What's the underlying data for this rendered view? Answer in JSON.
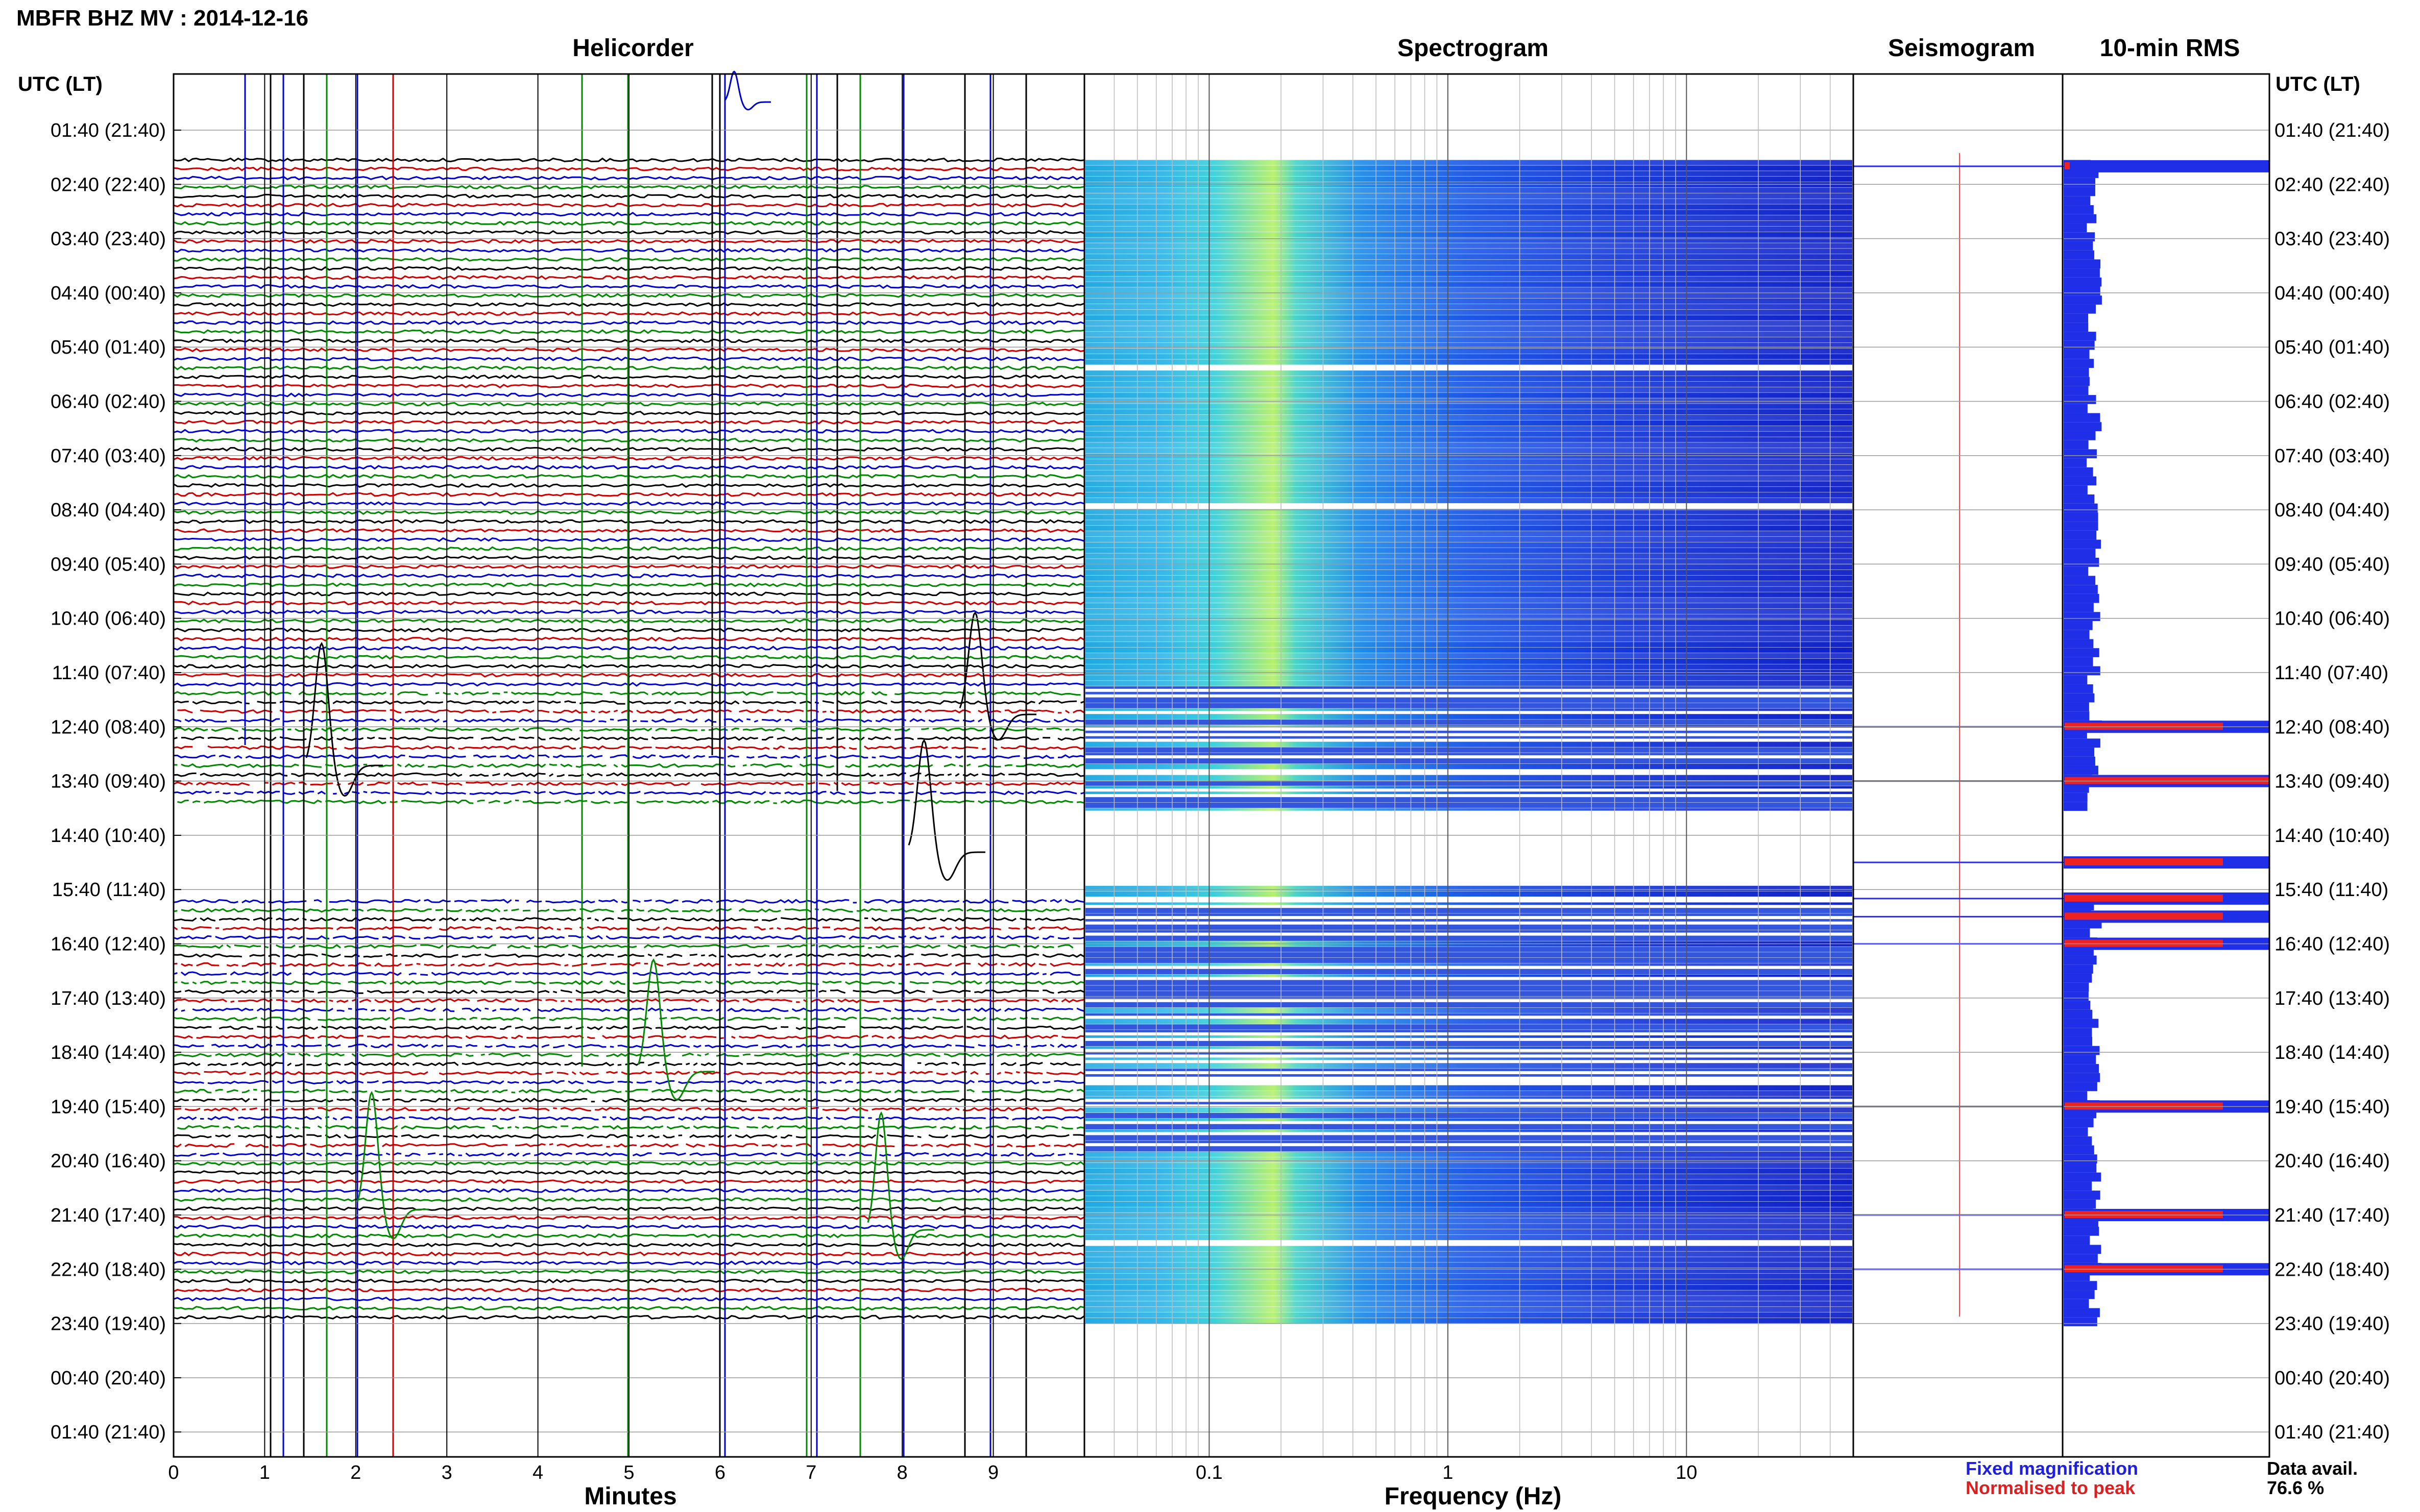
{
  "figure": {
    "title": "MBFR BHZ MV : 2014-12-16",
    "time_header_left": "UTC (LT)",
    "time_header_right": "UTC (LT)"
  },
  "panels": {
    "helicorder": "Helicorder",
    "spectrogram": "Spectrogram",
    "seismogram": "Seismogram",
    "rms": "10-min RMS"
  },
  "axes": {
    "helicorder_xlabel": "Minutes",
    "spectrogram_xlabel": "Frequency (Hz)"
  },
  "legend": {
    "fixed": "Fixed magnification",
    "normalised": "Normalised to peak",
    "fixed_color": "#1f1fdd",
    "normalised_color": "#dd1f1f"
  },
  "availability": {
    "label": "Data avail.",
    "value": "76.6 %"
  },
  "chart_data": [
    {
      "type": "line",
      "panel": "helicorder",
      "xlabel": "Minutes",
      "x_ticks": [
        "0",
        "1",
        "2",
        "3",
        "4",
        "5",
        "6",
        "7",
        "8",
        "9"
      ],
      "xlim": [
        0,
        10
      ],
      "y_ticks": [
        "01:40 (21:40)",
        "02:40 (22:40)",
        "03:40 (23:40)",
        "04:40 (00:40)",
        "05:40 (01:40)",
        "06:40 (02:40)",
        "07:40 (03:40)",
        "08:40 (04:40)",
        "09:40 (05:40)",
        "10:40 (06:40)",
        "11:40 (07:40)",
        "12:40 (08:40)",
        "13:40 (09:40)",
        "14:40 (10:40)",
        "15:40 (11:40)",
        "16:40 (12:40)",
        "17:40 (13:40)",
        "18:40 (14:40)",
        "19:40 (15:40)",
        "20:40 (16:40)",
        "21:40 (17:40)",
        "22:40 (18:40)",
        "23:40 (19:40)",
        "00:40 (20:40)",
        "01:40 (21:40)"
      ],
      "trace_colors": [
        "#000000",
        "#cc0000",
        "#0000cc",
        "#008800"
      ],
      "grid": true
    },
    {
      "type": "heatmap",
      "panel": "spectrogram",
      "xlabel": "Frequency (Hz)",
      "x_scale": "log",
      "x_ticks": [
        0.1,
        1,
        10
      ],
      "xlim": [
        0.03,
        50
      ],
      "peak_frequency_hz": 0.22,
      "colormap": "jet",
      "grid": true
    },
    {
      "type": "bar",
      "panel": "rms",
      "orientation": "horizontal",
      "window_minutes": 10,
      "spike_times_utc": [
        "02:20",
        "12:40",
        "13:40",
        "15:10",
        "15:50",
        "16:10",
        "16:40",
        "19:40",
        "21:40",
        "22:40"
      ]
    }
  ]
}
